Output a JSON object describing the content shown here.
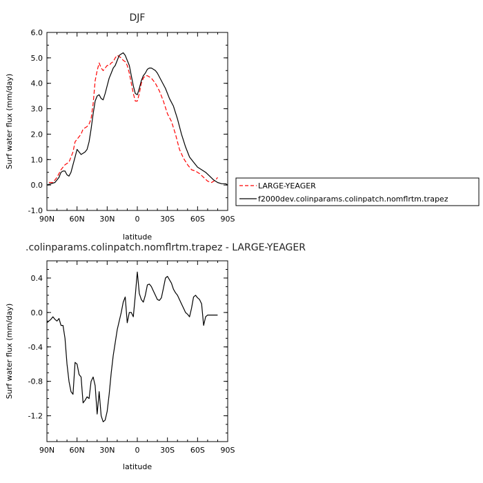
{
  "chart_data": [
    {
      "type": "line",
      "title": "DJF",
      "xlabel": "latitude",
      "ylabel": "Surf water flux (mm/day)",
      "xlim": [
        90,
        -90
      ],
      "ylim": [
        -1.0,
        6.0
      ],
      "x_ticks": [
        {
          "value": 90,
          "label": "90N"
        },
        {
          "value": 60,
          "label": "60N"
        },
        {
          "value": 30,
          "label": "30N"
        },
        {
          "value": 0,
          "label": "0"
        },
        {
          "value": -30,
          "label": "30S"
        },
        {
          "value": -60,
          "label": "60S"
        },
        {
          "value": -90,
          "label": "90S"
        }
      ],
      "y_ticks": [
        {
          "value": -1.0,
          "label": "-1.0"
        },
        {
          "value": 0.0,
          "label": "0.0"
        },
        {
          "value": 1.0,
          "label": "1.0"
        },
        {
          "value": 2.0,
          "label": "2.0"
        },
        {
          "value": 3.0,
          "label": "3.0"
        },
        {
          "value": 4.0,
          "label": "4.0"
        },
        {
          "value": 5.0,
          "label": "5.0"
        },
        {
          "value": 6.0,
          "label": "6.0"
        }
      ],
      "legend_position": "right",
      "series": [
        {
          "name": "LARGE-YEAGER",
          "color": "#ff0000",
          "dashed": true,
          "x": [
            88,
            84,
            80,
            76,
            72,
            68,
            64,
            62,
            60,
            58,
            56,
            54,
            52,
            50,
            48,
            46,
            44,
            42,
            40,
            38,
            36,
            34,
            32,
            30,
            28,
            26,
            24,
            22,
            20,
            18,
            16,
            14,
            12,
            10,
            8,
            6,
            4,
            2,
            0,
            -2,
            -4,
            -6,
            -8,
            -10,
            -14,
            -18,
            -22,
            -26,
            -30,
            -34,
            -38,
            -42,
            -46,
            -50,
            -54,
            -58,
            -62,
            -66,
            -70,
            -74,
            -78,
            -80
          ],
          "y": [
            0.1,
            0.1,
            0.3,
            0.6,
            0.8,
            0.9,
            1.3,
            1.7,
            1.8,
            1.9,
            2.0,
            2.2,
            2.25,
            2.3,
            2.4,
            2.6,
            3.2,
            4.1,
            4.5,
            4.8,
            4.6,
            4.5,
            4.6,
            4.7,
            4.7,
            4.8,
            4.85,
            5.0,
            5.1,
            5.05,
            5.0,
            4.9,
            4.85,
            4.7,
            4.4,
            4.0,
            3.6,
            3.3,
            3.3,
            3.6,
            4.0,
            4.2,
            4.3,
            4.3,
            4.2,
            4.0,
            3.7,
            3.3,
            2.8,
            2.5,
            2.0,
            1.4,
            1.05,
            0.8,
            0.6,
            0.55,
            0.45,
            0.3,
            0.15,
            0.1,
            0.2,
            0.3
          ]
        },
        {
          "name": "f2000dev.colinparams.colinpatch.nomflrtm.trapez",
          "color": "#000000",
          "dashed": false,
          "x": [
            90,
            86,
            82,
            78,
            76,
            74,
            72,
            70,
            68,
            66,
            64,
            62,
            60,
            58,
            56,
            54,
            52,
            50,
            48,
            46,
            44,
            42,
            40,
            38,
            36,
            34,
            32,
            30,
            28,
            26,
            24,
            22,
            20,
            18,
            16,
            14,
            12,
            10,
            8,
            6,
            4,
            2,
            0,
            -2,
            -4,
            -6,
            -8,
            -10,
            -12,
            -14,
            -16,
            -18,
            -20,
            -24,
            -28,
            -32,
            -36,
            -40,
            -44,
            -48,
            -52,
            -56,
            -60,
            -64,
            -68,
            -72,
            -76,
            -80,
            -84,
            -88,
            -90
          ],
          "y": [
            0.0,
            0.05,
            0.1,
            0.3,
            0.5,
            0.55,
            0.55,
            0.4,
            0.35,
            0.5,
            0.8,
            1.1,
            1.4,
            1.3,
            1.2,
            1.25,
            1.3,
            1.4,
            1.7,
            2.2,
            2.8,
            3.3,
            3.5,
            3.55,
            3.4,
            3.35,
            3.6,
            3.9,
            4.2,
            4.4,
            4.6,
            4.7,
            4.9,
            5.1,
            5.15,
            5.2,
            5.1,
            4.9,
            4.7,
            4.3,
            3.9,
            3.6,
            3.55,
            3.8,
            4.1,
            4.3,
            4.4,
            4.55,
            4.6,
            4.6,
            4.55,
            4.5,
            4.4,
            4.1,
            3.8,
            3.4,
            3.1,
            2.6,
            2.0,
            1.5,
            1.1,
            0.9,
            0.7,
            0.6,
            0.5,
            0.35,
            0.2,
            0.1,
            0.05,
            0.05,
            0.0
          ]
        }
      ]
    },
    {
      "type": "line",
      "title": ".colinparams.colinpatch.nomflrtm.trapez - LARGE-YEAGER",
      "xlabel": "latitude",
      "ylabel": "Surf water flux (mm/day)",
      "xlim": [
        90,
        -90
      ],
      "ylim": [
        -1.5,
        0.6
      ],
      "x_ticks": [
        {
          "value": 90,
          "label": "90N"
        },
        {
          "value": 60,
          "label": "60N"
        },
        {
          "value": 30,
          "label": "30N"
        },
        {
          "value": 0,
          "label": "0"
        },
        {
          "value": -30,
          "label": "30S"
        },
        {
          "value": -60,
          "label": "60S"
        },
        {
          "value": -90,
          "label": "90S"
        }
      ],
      "y_ticks": [
        {
          "value": -1.2,
          "label": "-1.2"
        },
        {
          "value": -0.8,
          "label": "-0.8"
        },
        {
          "value": -0.4,
          "label": "-0.4"
        },
        {
          "value": 0.0,
          "label": "0.0"
        },
        {
          "value": 0.4,
          "label": "0.4"
        }
      ],
      "series": [
        {
          "color": "#000000",
          "dashed": false,
          "x": [
            90,
            86,
            84,
            82,
            80,
            78,
            76,
            74,
            72,
            70,
            68,
            66,
            64,
            62,
            60,
            58,
            56,
            54,
            52,
            50,
            48,
            46,
            44,
            42,
            40,
            38,
            36,
            34,
            32,
            30,
            28,
            26,
            24,
            22,
            20,
            18,
            16,
            14,
            12,
            10,
            8,
            6,
            4,
            2,
            0,
            -2,
            -4,
            -6,
            -8,
            -10,
            -12,
            -14,
            -16,
            -18,
            -20,
            -22,
            -24,
            -26,
            -28,
            -30,
            -32,
            -34,
            -36,
            -38,
            -40,
            -42,
            -44,
            -46,
            -48,
            -50,
            -52,
            -54,
            -56,
            -58,
            -60,
            -62,
            -64,
            -66,
            -68,
            -70,
            -72,
            -74,
            -76,
            -78,
            -80
          ],
          "y": [
            -0.12,
            -0.08,
            -0.05,
            -0.08,
            -0.1,
            -0.07,
            -0.15,
            -0.15,
            -0.3,
            -0.6,
            -0.8,
            -0.92,
            -0.95,
            -0.58,
            -0.6,
            -0.72,
            -0.75,
            -1.05,
            -1.02,
            -0.98,
            -1.0,
            -0.8,
            -0.75,
            -0.85,
            -1.18,
            -0.92,
            -1.2,
            -1.27,
            -1.25,
            -1.15,
            -0.95,
            -0.7,
            -0.5,
            -0.35,
            -0.2,
            -0.1,
            0.0,
            0.12,
            0.18,
            -0.12,
            0.0,
            0.0,
            -0.05,
            0.2,
            0.47,
            0.22,
            0.15,
            0.12,
            0.2,
            0.32,
            0.33,
            0.3,
            0.25,
            0.2,
            0.15,
            0.14,
            0.17,
            0.28,
            0.4,
            0.42,
            0.38,
            0.34,
            0.27,
            0.23,
            0.2,
            0.15,
            0.1,
            0.05,
            0.0,
            -0.02,
            -0.05,
            0.05,
            0.18,
            0.2,
            0.17,
            0.15,
            0.1,
            -0.15,
            -0.05,
            -0.03,
            -0.03,
            -0.03,
            -0.03,
            -0.03,
            -0.03
          ]
        }
      ]
    }
  ]
}
